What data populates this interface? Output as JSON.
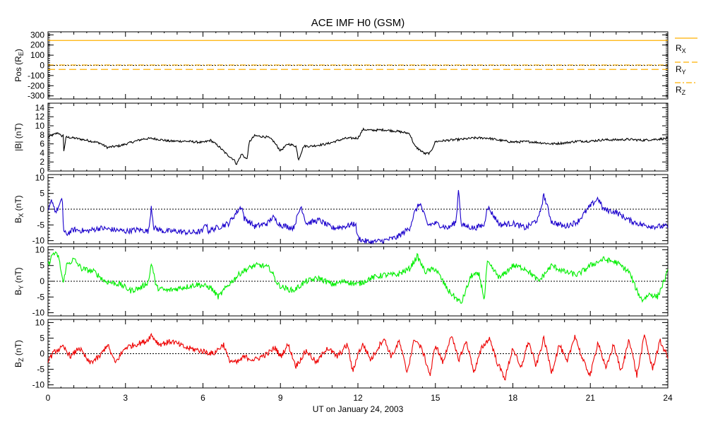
{
  "title": "ACE IMF H0 (GSM)",
  "xlabel": "UT on January 24, 2003",
  "chart_data": [
    {
      "type": "line",
      "panel": "position",
      "ylabel": {
        "main": "Pos (R",
        "sub": "E",
        "close": ")"
      },
      "ylim": [
        -330,
        330
      ],
      "yticks": [
        -300,
        -200,
        -100,
        0,
        100,
        200,
        300
      ],
      "xlim": [
        0,
        24
      ],
      "xticks": [
        0,
        3,
        6,
        9,
        12,
        15,
        18,
        21,
        24
      ],
      "zero_line": true,
      "legend": [
        {
          "main": "R",
          "sub": "X",
          "color": "#ffb000",
          "style": "solid"
        },
        {
          "main": "R",
          "sub": "Y",
          "color": "#ffb000",
          "style": "dashed"
        },
        {
          "main": "R",
          "sub": "Z",
          "color": "#ffb000",
          "style": "dashdot"
        }
      ],
      "series": [
        {
          "key": "RX",
          "color": "#ffb000",
          "x": [
            0,
            24
          ],
          "y": [
            245,
            245
          ]
        },
        {
          "key": "RY",
          "color": "#ffb000",
          "x": [
            0,
            24
          ],
          "y": [
            -40,
            -40
          ]
        },
        {
          "key": "RZ",
          "color": "#ffb000",
          "x": [
            0,
            24
          ],
          "y": [
            4,
            4
          ]
        }
      ]
    },
    {
      "type": "line",
      "panel": "Bmag",
      "ylabel": {
        "main": "|B| (nT)"
      },
      "ylim": [
        0,
        15
      ],
      "yticks": [
        0,
        2,
        4,
        6,
        8,
        10,
        12,
        14
      ],
      "xlim": [
        0,
        24
      ],
      "zero_line": false,
      "series": [
        {
          "key": "B",
          "color": "#000000",
          "x": [
            0,
            0.2,
            0.4,
            0.5,
            0.6,
            0.6,
            0.7,
            1.0,
            1.5,
            2.0,
            2.3,
            2.8,
            3.2,
            3.7,
            4.0,
            4.3,
            4.7,
            5.3,
            6.0,
            6.3,
            6.6,
            6.9,
            7.2,
            7.3,
            7.5,
            7.7,
            7.8,
            8.0,
            8.5,
            8.7,
            9.0,
            9.3,
            9.6,
            9.7,
            9.9,
            10.2,
            10.8,
            11.5,
            12.0,
            12.2,
            12.5,
            13.0,
            13.5,
            14.0,
            14.2,
            14.6,
            14.8,
            15.0,
            15.5,
            16.0,
            16.5,
            17.0,
            17.5,
            18.0,
            18.6,
            19.0,
            19.5,
            20.0,
            20.5,
            21.0,
            21.5,
            22.0,
            22.5,
            23.0,
            23.5,
            24
          ],
          "y": [
            7.5,
            8.0,
            8.5,
            7.7,
            7.9,
            4.0,
            7.5,
            7.3,
            6.8,
            6.2,
            5.2,
            5.6,
            6.3,
            7.1,
            7.2,
            7.0,
            6.6,
            6.6,
            6.3,
            6.8,
            5.5,
            3.8,
            2.5,
            1.5,
            3.8,
            2.5,
            6.5,
            7.8,
            7.5,
            6.8,
            4.5,
            6.0,
            5.5,
            2.5,
            5.5,
            5.5,
            6.0,
            7.2,
            7.3,
            9.2,
            9.0,
            9.1,
            8.8,
            8.3,
            5.5,
            3.8,
            4.0,
            6.5,
            6.8,
            7.0,
            7.3,
            7.3,
            6.8,
            6.4,
            6.5,
            6.3,
            6.0,
            6.2,
            6.6,
            6.6,
            6.9,
            6.9,
            7.0,
            6.8,
            7.0,
            7.2
          ]
        }
      ]
    },
    {
      "type": "line",
      "panel": "Bx",
      "ylabel": {
        "main": "B",
        "sub": "X",
        "close": " (nT)"
      },
      "ylim": [
        -11,
        11
      ],
      "yticks": [
        -10,
        -5,
        0,
        5,
        10
      ],
      "xlim": [
        0,
        24
      ],
      "zero_line": true,
      "series": [
        {
          "key": "BX",
          "color": "#1a00cc",
          "x": [
            0,
            0.15,
            0.3,
            0.5,
            0.55,
            0.6,
            0.7,
            1.0,
            1.5,
            2.0,
            2.5,
            3.0,
            3.5,
            3.9,
            4.0,
            4.1,
            4.5,
            5.0,
            5.5,
            6.0,
            6.1,
            6.2,
            6.5,
            7.0,
            7.3,
            7.5,
            7.6,
            7.8,
            8.0,
            8.5,
            8.7,
            9.0,
            9.5,
            9.8,
            10.0,
            10.5,
            11.0,
            11.5,
            11.9,
            12.0,
            12.2,
            12.5,
            13.0,
            13.5,
            14.0,
            14.2,
            14.4,
            14.7,
            15.0,
            15.5,
            15.8,
            15.9,
            16.0,
            16.5,
            16.9,
            17.0,
            17.5,
            18.0,
            18.5,
            19.0,
            19.2,
            19.5,
            20.0,
            20.5,
            21.0,
            21.3,
            21.5,
            22.0,
            22.5,
            23.0,
            23.5,
            24
          ],
          "y": [
            -1,
            3,
            -1,
            2,
            4.5,
            -7,
            -8,
            -6.5,
            -7,
            -6,
            -6.5,
            -7,
            -6.5,
            -7,
            1,
            -6,
            -7,
            -7,
            -7.5,
            -7,
            -4,
            -7,
            -6,
            -4.5,
            -1,
            1,
            -3,
            -4,
            -5.5,
            -4.5,
            -2.5,
            -5,
            -6,
            1,
            -4.5,
            -3.5,
            -6,
            -5.5,
            -4.5,
            -9,
            -10,
            -10.5,
            -10,
            -9,
            -6,
            -1,
            2,
            -5,
            -4.5,
            -6,
            -4,
            7,
            -5,
            -6,
            -5,
            1,
            -5,
            -4.5,
            -6,
            -3,
            4.5,
            -4,
            -5.5,
            -4,
            1,
            3.5,
            0,
            -1,
            -3.5,
            -5,
            -5.5,
            -5.5
          ]
        }
      ]
    },
    {
      "type": "line",
      "panel": "By",
      "ylabel": {
        "main": "B",
        "sub": "Y",
        "close": " (nT)"
      },
      "ylim": [
        -11,
        11
      ],
      "yticks": [
        -10,
        -5,
        0,
        5,
        10
      ],
      "xlim": [
        0,
        24
      ],
      "zero_line": true,
      "series": [
        {
          "key": "BY",
          "color": "#00ee00",
          "x": [
            0,
            0.2,
            0.4,
            0.6,
            0.7,
            1.0,
            1.3,
            1.8,
            2.2,
            2.8,
            3.2,
            3.6,
            3.9,
            4.0,
            4.2,
            4.6,
            5.2,
            5.8,
            6.3,
            6.6,
            7.0,
            7.5,
            8.0,
            8.3,
            8.6,
            8.9,
            9.1,
            9.5,
            10.0,
            10.5,
            11.0,
            11.5,
            12.0,
            12.5,
            13.0,
            13.5,
            14.0,
            14.3,
            14.6,
            15.0,
            15.5,
            16.0,
            16.4,
            16.7,
            16.9,
            17.0,
            17.5,
            18.0,
            18.5,
            19.0,
            19.5,
            20.0,
            20.5,
            21.0,
            21.5,
            22.0,
            22.5,
            22.8,
            23.0,
            23.3,
            23.6,
            24
          ],
          "y": [
            5,
            9,
            8,
            -1,
            5,
            7,
            4,
            3,
            0,
            -1,
            -3,
            -2,
            0,
            6,
            -2,
            -3,
            -2,
            -1,
            -2,
            -5,
            -1,
            3,
            5,
            5,
            4,
            -1,
            -2,
            -3,
            0,
            1,
            -1,
            0,
            -1,
            1,
            2,
            2,
            4,
            8,
            3,
            4,
            -3,
            -7,
            2,
            2,
            -6,
            6,
            1,
            5,
            4,
            0,
            5,
            3,
            2,
            5,
            7,
            6,
            3,
            -3,
            -6,
            -4,
            -5,
            3
          ]
        }
      ]
    },
    {
      "type": "line",
      "panel": "Bz",
      "ylabel": {
        "main": "B",
        "sub": "Z",
        "close": " (nT)"
      },
      "ylim": [
        -11,
        11
      ],
      "yticks": [
        -10,
        -5,
        0,
        5,
        10
      ],
      "xlim": [
        0,
        24
      ],
      "zero_line": true,
      "series": [
        {
          "key": "BZ",
          "color": "#ee0000",
          "x": [
            0,
            0.3,
            0.6,
            0.9,
            1.2,
            1.6,
            2.0,
            2.3,
            2.6,
            3.0,
            3.4,
            3.8,
            4.0,
            4.3,
            4.8,
            5.3,
            5.9,
            6.4,
            6.8,
            7.0,
            7.3,
            7.6,
            8.0,
            8.5,
            8.8,
            9.0,
            9.3,
            9.6,
            10.0,
            10.4,
            10.8,
            11.2,
            11.6,
            11.8,
            12.0,
            12.2,
            12.5,
            13.0,
            13.3,
            13.6,
            13.9,
            14.2,
            14.5,
            14.8,
            15.0,
            15.3,
            15.6,
            15.9,
            16.2,
            16.5,
            16.8,
            17.1,
            17.4,
            17.7,
            18.0,
            18.3,
            18.6,
            18.9,
            19.2,
            19.5,
            19.8,
            20.1,
            20.4,
            20.7,
            21.0,
            21.3,
            21.6,
            21.9,
            22.2,
            22.5,
            22.8,
            23.1,
            23.4,
            23.7,
            24
          ],
          "y": [
            -2,
            1,
            2,
            -1,
            2,
            -3,
            -1,
            3,
            -3,
            2,
            3,
            4,
            6,
            3,
            4,
            2,
            1,
            0,
            3,
            -2,
            -3,
            -1,
            -2,
            0,
            2,
            -1,
            3,
            -4,
            1,
            -3,
            2,
            -1,
            3,
            -6,
            0,
            3,
            -2,
            5,
            -1,
            4,
            -6,
            5,
            1,
            -7,
            3,
            -3,
            6,
            -2,
            4,
            -6,
            2,
            5,
            -3,
            -8,
            2,
            -5,
            4,
            -4,
            5,
            -6,
            3,
            -3,
            6,
            -2,
            -7,
            4,
            -5,
            3,
            -6,
            5,
            -7,
            6,
            -5,
            4,
            -1
          ]
        }
      ]
    }
  ]
}
